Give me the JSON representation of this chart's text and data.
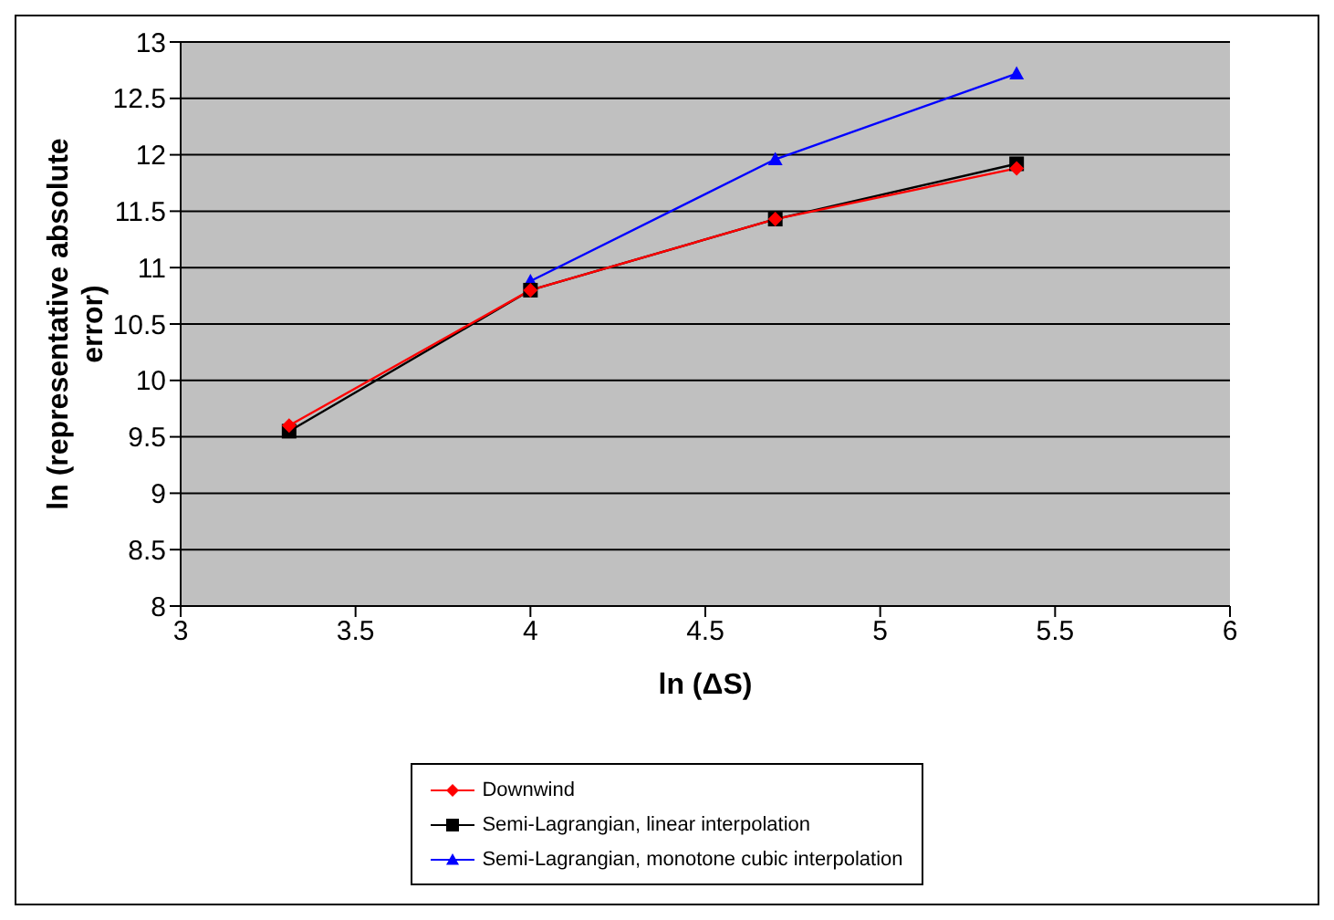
{
  "chart_data": {
    "type": "line",
    "xlabel": "ln (ΔS)",
    "ylabel": "ln (representative absolute error)",
    "xlim": [
      3,
      6
    ],
    "xticks": [
      3,
      3.5,
      4,
      4.5,
      5,
      5.5,
      6
    ],
    "ylim": [
      8,
      13
    ],
    "yticks": [
      8,
      8.5,
      9,
      9.5,
      10,
      10.5,
      11,
      11.5,
      12,
      12.5,
      13
    ],
    "grid": "y",
    "legend": "bottom",
    "series": [
      {
        "name": "Downwind",
        "color": "#ff0000",
        "marker": "diamond",
        "x": [
          3.31,
          4.0,
          4.7,
          5.39
        ],
        "values": [
          9.6,
          10.8,
          11.43,
          11.88
        ]
      },
      {
        "name": "Semi-Lagrangian, linear interpolation",
        "color": "#000000",
        "marker": "square",
        "x": [
          3.31,
          4.0,
          4.7,
          5.39
        ],
        "values": [
          9.55,
          10.8,
          11.43,
          11.92
        ]
      },
      {
        "name": "Semi-Lagrangian, monotone cubic interpolation",
        "color": "#0000ff",
        "marker": "triangle",
        "x": [
          4.0,
          4.7,
          5.39
        ],
        "values": [
          10.88,
          11.96,
          12.72
        ]
      }
    ]
  }
}
